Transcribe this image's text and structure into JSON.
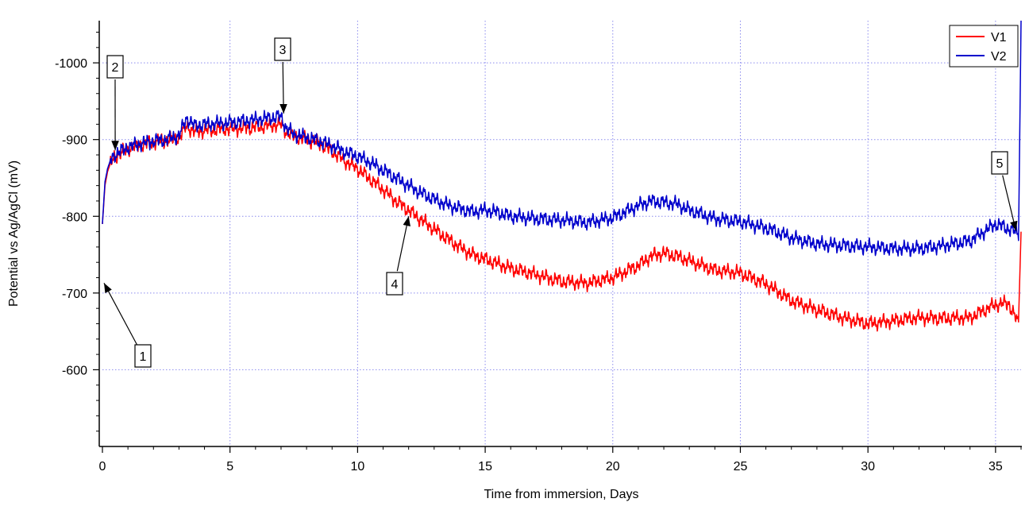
{
  "chart_data": {
    "type": "line",
    "xlabel": "Time from immersion, Days",
    "ylabel": "Potential vs Ag/AgCl (mV)",
    "xlim": [
      0,
      36
    ],
    "ylim": [
      -500,
      -1055
    ],
    "y_reversed": true,
    "grid": true,
    "legend_position": "top-right",
    "x_ticks": [
      0,
      5,
      10,
      15,
      20,
      25,
      30,
      35
    ],
    "x_tick_labels": [
      "0",
      "5",
      "10",
      "15",
      "20",
      "25",
      "30",
      "35"
    ],
    "y_ticks": [
      -600,
      -700,
      -800,
      -900,
      -1000
    ],
    "y_tick_labels": [
      "-600",
      "-700",
      "-800",
      "-900",
      "-1000"
    ],
    "series": [
      {
        "name": "V1",
        "color": "#ff0000",
        "x": [
          0,
          0.1,
          0.2,
          0.3,
          0.5,
          0.8,
          1,
          1.5,
          2,
          2.5,
          3,
          3.3,
          3.6,
          4,
          5,
          6,
          7,
          7.2,
          7.5,
          8,
          8.5,
          9,
          9.5,
          10,
          10.5,
          11,
          11.5,
          12,
          12.5,
          13,
          13.5,
          14,
          14.5,
          15,
          15.5,
          16,
          17,
          18,
          19,
          20,
          21,
          21.5,
          22,
          22.5,
          23,
          24,
          25,
          26,
          27,
          28,
          29,
          30,
          31,
          32,
          33,
          34,
          35,
          35.5,
          35.9,
          36
        ],
        "values": [
          -790,
          -840,
          -858,
          -868,
          -878,
          -884,
          -888,
          -893,
          -897,
          -899,
          -902,
          -918,
          -910,
          -912,
          -914,
          -916,
          -920,
          -910,
          -904,
          -900,
          -895,
          -885,
          -872,
          -862,
          -848,
          -835,
          -820,
          -808,
          -795,
          -783,
          -771,
          -760,
          -750,
          -744,
          -738,
          -732,
          -724,
          -715,
          -713,
          -720,
          -736,
          -748,
          -752,
          -748,
          -742,
          -730,
          -726,
          -712,
          -690,
          -678,
          -668,
          -660,
          -664,
          -668,
          -667,
          -668,
          -685,
          -687,
          -660,
          -780
        ]
      },
      {
        "name": "V2",
        "color": "#0000cc",
        "x": [
          0,
          0.1,
          0.2,
          0.3,
          0.5,
          0.8,
          1,
          1.5,
          2,
          2.5,
          3,
          3.3,
          3.6,
          4,
          5,
          6,
          7,
          7.2,
          7.5,
          8,
          8.5,
          9,
          9.5,
          10,
          10.5,
          11,
          11.5,
          12,
          12.5,
          13,
          13.5,
          14,
          14.5,
          15,
          15.5,
          16,
          17,
          18,
          19,
          20,
          21,
          21.5,
          22,
          22.5,
          23,
          24,
          25,
          26,
          27,
          28,
          29,
          30,
          31,
          32,
          33,
          34,
          35,
          35.5,
          35.9,
          36
        ],
        "values": [
          -790,
          -845,
          -862,
          -872,
          -881,
          -886,
          -890,
          -895,
          -898,
          -900,
          -905,
          -928,
          -918,
          -920,
          -922,
          -926,
          -930,
          -915,
          -907,
          -903,
          -898,
          -892,
          -884,
          -878,
          -870,
          -860,
          -850,
          -840,
          -830,
          -822,
          -815,
          -810,
          -806,
          -808,
          -805,
          -800,
          -797,
          -795,
          -792,
          -798,
          -814,
          -820,
          -818,
          -816,
          -808,
          -797,
          -793,
          -785,
          -772,
          -764,
          -762,
          -760,
          -758,
          -758,
          -762,
          -768,
          -790,
          -784,
          -778,
          -1055
        ]
      }
    ],
    "annotations": [
      {
        "label": "1",
        "x": 0,
        "y": -713
      },
      {
        "label": "2",
        "x": 0.5,
        "y": -886
      },
      {
        "label": "3",
        "x": 7.1,
        "y": -934
      },
      {
        "label": "4",
        "x": 12.0,
        "y": -800
      },
      {
        "label": "5",
        "x": 35.8,
        "y": -781
      }
    ]
  }
}
